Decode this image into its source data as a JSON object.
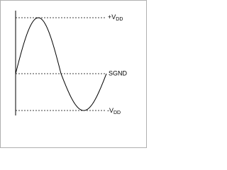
{
  "labels": [
    {
      "text": "+V",
      "subscript": "DD"
    },
    {
      "text": "SGND"
    },
    {
      "text": "-V",
      "subscript": "DD"
    }
  ]
}
